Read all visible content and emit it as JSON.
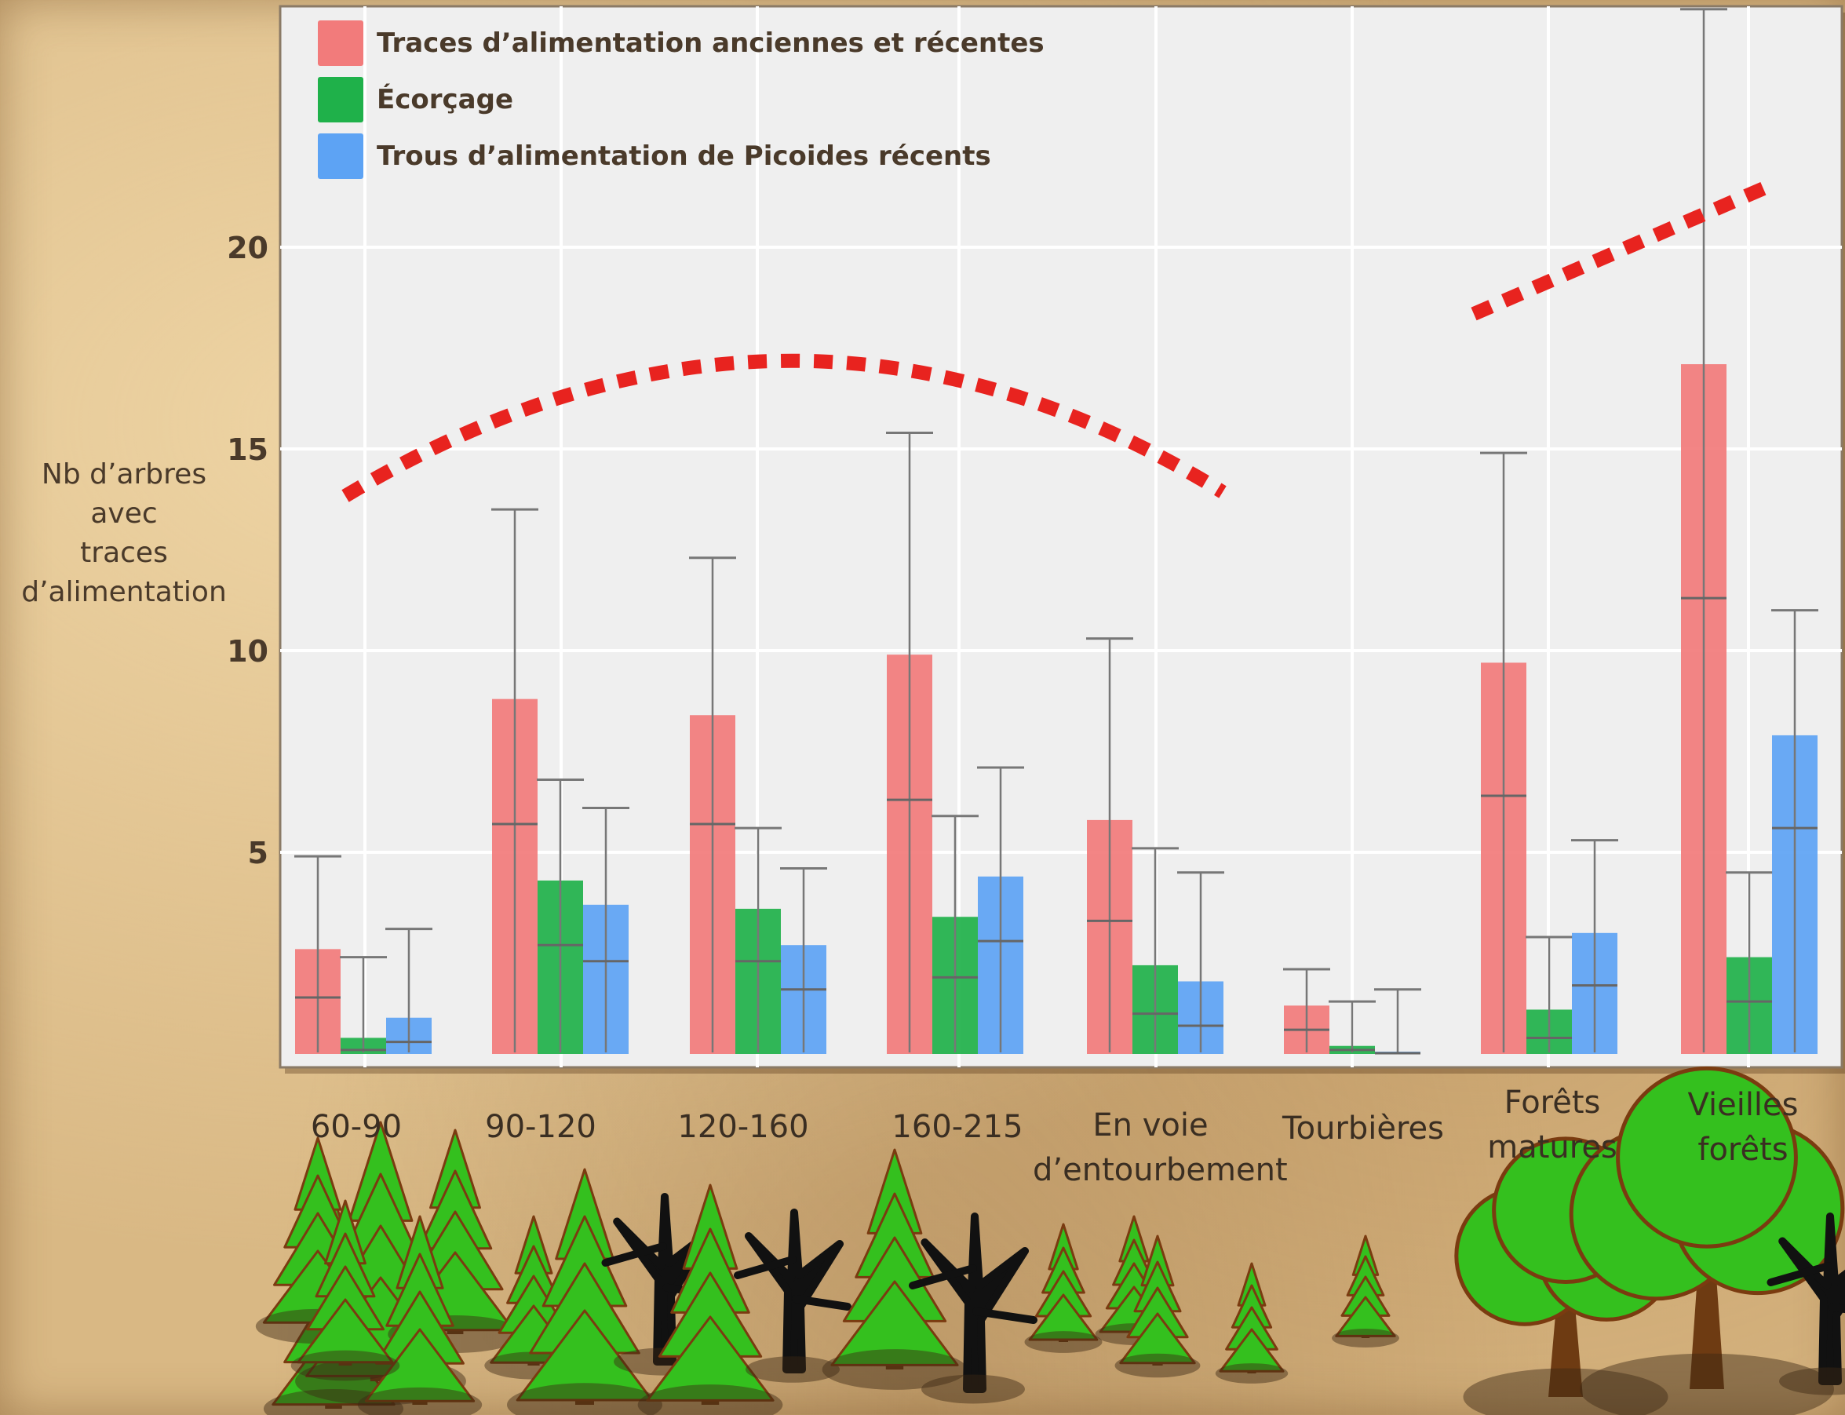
{
  "chart_data": {
    "type": "bar",
    "ylabel_lines": [
      "Nb d’arbres avec",
      "traces",
      "d’alimentation"
    ],
    "yticks": [
      5,
      10,
      15,
      20
    ],
    "ylim": [
      0,
      26
    ],
    "grid": true,
    "legend_position": "top-left",
    "categories": [
      [
        "60-90"
      ],
      [
        "90-120"
      ],
      [
        "120-160"
      ],
      [
        "160-215"
      ],
      [
        "En voie",
        "d’entourbement"
      ],
      [
        "Tourbières"
      ],
      [
        "Forêts",
        "matures"
      ],
      [
        "Vieilles",
        "forêts"
      ]
    ],
    "series": [
      {
        "name": "Traces d’alimentation anciennes et récentes",
        "color": "#f27b7b",
        "values": [
          2.6,
          8.8,
          8.4,
          9.9,
          5.8,
          1.2,
          9.7,
          17.1
        ],
        "error_low": [
          1.4,
          5.7,
          5.7,
          6.3,
          3.3,
          0.6,
          6.4,
          11.3
        ],
        "error_high": [
          4.9,
          13.5,
          12.3,
          15.4,
          10.3,
          2.1,
          14.9,
          25.9
        ]
      },
      {
        "name": "Écorçage",
        "color": "#1fb14a",
        "values": [
          0.4,
          4.3,
          3.6,
          3.4,
          2.2,
          0.2,
          1.1,
          2.4
        ],
        "error_low": [
          0.1,
          2.7,
          2.3,
          1.9,
          1.0,
          0.1,
          0.4,
          1.3
        ],
        "error_high": [
          2.4,
          6.8,
          5.6,
          5.9,
          5.1,
          1.3,
          2.9,
          4.5
        ]
      },
      {
        "name": "Trous d’alimentation de Picoides récents",
        "color": "#5da3f4",
        "values": [
          0.9,
          3.7,
          2.7,
          4.4,
          1.8,
          0.05,
          3.0,
          7.9
        ],
        "error_low": [
          0.3,
          2.3,
          1.6,
          2.8,
          0.7,
          0.02,
          1.7,
          5.6
        ],
        "error_high": [
          3.1,
          6.1,
          4.6,
          7.1,
          4.5,
          1.6,
          5.3,
          11.0
        ]
      }
    ],
    "trend_lines": [
      {
        "shape": "arc",
        "color": "#e8231f",
        "style": "dotted"
      },
      {
        "shape": "rising",
        "color": "#e8231f",
        "style": "dotted"
      }
    ]
  },
  "colors": {
    "background": "#d9b884",
    "plot_background": "#efefef",
    "text": "#4a3a2a",
    "tree_green": "#34c01e",
    "tree_outline": "#7a3b10",
    "trunk": "#6e3b12",
    "dead_tree": "#111111"
  }
}
